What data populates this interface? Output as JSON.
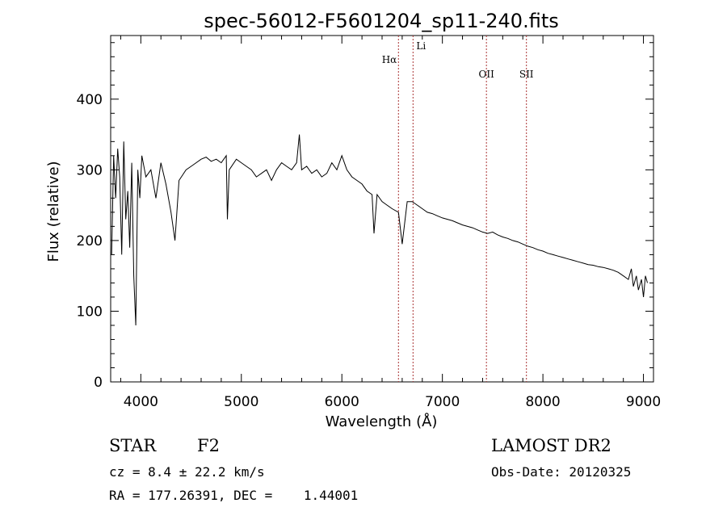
{
  "chart_data": {
    "type": "line",
    "title": "spec-56012-F5601204_sp11-240.fits",
    "xlabel": "Wavelength (Å)",
    "ylabel": "Flux (relative)",
    "xlim": [
      3700,
      9100
    ],
    "ylim": [
      0,
      490
    ],
    "x_ticks": [
      4000,
      5000,
      6000,
      7000,
      8000,
      9000
    ],
    "y_ticks": [
      0,
      100,
      200,
      300,
      400
    ],
    "grid": false,
    "line_color": "#000000",
    "marker_color": "#aa3333",
    "spectrum_x": [
      3710,
      3730,
      3750,
      3770,
      3790,
      3810,
      3830,
      3850,
      3870,
      3890,
      3910,
      3930,
      3950,
      3970,
      3990,
      4010,
      4050,
      4100,
      4150,
      4200,
      4250,
      4300,
      4340,
      4380,
      4450,
      4500,
      4550,
      4600,
      4650,
      4700,
      4750,
      4800,
      4850,
      4861,
      4880,
      4950,
      5000,
      5050,
      5100,
      5150,
      5200,
      5250,
      5300,
      5350,
      5400,
      5450,
      5500,
      5550,
      5577,
      5600,
      5650,
      5700,
      5750,
      5800,
      5850,
      5900,
      5950,
      6000,
      6050,
      6100,
      6150,
      6200,
      6250,
      6300,
      6320,
      6350,
      6400,
      6450,
      6500,
      6563,
      6600,
      6650,
      6700,
      6750,
      6800,
      6850,
      6900,
      6950,
      7000,
      7050,
      7100,
      7150,
      7200,
      7250,
      7300,
      7350,
      7400,
      7450,
      7500,
      7550,
      7600,
      7650,
      7700,
      7750,
      7800,
      7850,
      7900,
      7950,
      8000,
      8050,
      8100,
      8150,
      8200,
      8250,
      8300,
      8350,
      8400,
      8450,
      8500,
      8550,
      8600,
      8650,
      8700,
      8750,
      8800,
      8850,
      8880,
      8900,
      8930,
      8950,
      8980,
      9000,
      9020,
      9040
    ],
    "spectrum_y": [
      180,
      320,
      260,
      330,
      290,
      180,
      340,
      230,
      270,
      190,
      310,
      150,
      80,
      300,
      260,
      320,
      290,
      300,
      260,
      310,
      280,
      240,
      200,
      285,
      300,
      305,
      310,
      315,
      318,
      312,
      315,
      310,
      320,
      230,
      300,
      315,
      310,
      305,
      300,
      290,
      295,
      300,
      285,
      300,
      310,
      305,
      300,
      310,
      350,
      300,
      305,
      295,
      300,
      290,
      295,
      310,
      300,
      320,
      300,
      290,
      285,
      280,
      270,
      265,
      210,
      265,
      255,
      250,
      245,
      240,
      195,
      255,
      255,
      250,
      245,
      240,
      238,
      235,
      232,
      230,
      228,
      225,
      222,
      220,
      218,
      215,
      212,
      210,
      212,
      208,
      205,
      203,
      200,
      198,
      195,
      192,
      190,
      187,
      185,
      182,
      180,
      178,
      176,
      174,
      172,
      170,
      168,
      166,
      165,
      163,
      162,
      160,
      158,
      155,
      150,
      145,
      160,
      135,
      150,
      130,
      145,
      120,
      150,
      140
    ],
    "lines": [
      {
        "label": "Hα",
        "x": 6563
      },
      {
        "label": "Li",
        "x": 6708
      },
      {
        "label": "OII",
        "x": 7438
      },
      {
        "label": "SII",
        "x": 7836
      }
    ]
  },
  "info": {
    "class_label": "STAR",
    "subclass": "F2",
    "survey": "LAMOST DR2",
    "cz": "cz = 8.4 ± 22.2 km/s",
    "obs_date": "Obs-Date: 20120325",
    "radec": "RA = 177.26391, DEC =    1.44001"
  }
}
